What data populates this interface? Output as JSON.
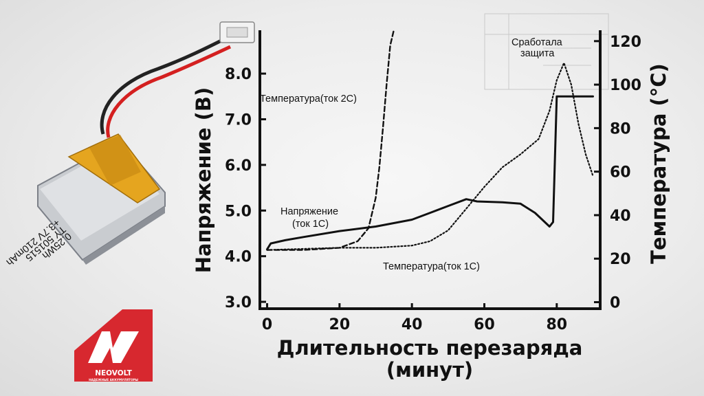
{
  "chart_data": {
    "type": "line",
    "xlabel_line1": "Длительность перезаряда",
    "xlabel_line2": "(минут)",
    "ylabel_left": "Напряжение (В)",
    "ylabel_right": "Температура (°C)",
    "x_ticks": [
      "0",
      "20",
      "40",
      "60",
      "80"
    ],
    "y_left_ticks": [
      "3.0",
      "4.0",
      "5.0",
      "6.0",
      "7.0",
      "8.0"
    ],
    "y_right_ticks": [
      "0",
      "20",
      "40",
      "60",
      "80",
      "100",
      "120"
    ],
    "xlim": [
      -2,
      92
    ],
    "y_left_lim": [
      2.85,
      8.95
    ],
    "y_right_lim": [
      -3,
      125
    ],
    "series": [
      {
        "name": "Напряжение (ток 1С)",
        "axis": "left",
        "style": "solid",
        "x": [
          0,
          1,
          5,
          10,
          20,
          30,
          40,
          45,
          50,
          55,
          58,
          65,
          70,
          74,
          76,
          78,
          79,
          80,
          81,
          85,
          90
        ],
        "y": [
          4.15,
          4.28,
          4.35,
          4.42,
          4.55,
          4.65,
          4.8,
          4.95,
          5.1,
          5.25,
          5.2,
          5.18,
          5.15,
          4.95,
          4.8,
          4.65,
          4.75,
          7.5,
          7.5,
          7.5,
          7.5
        ]
      },
      {
        "name": "Температура (ток 2С)",
        "axis": "right",
        "style": "dashed",
        "x": [
          0,
          10,
          20,
          25,
          28,
          30,
          31,
          32,
          33,
          34,
          35
        ],
        "y": [
          24,
          24,
          25,
          28,
          34,
          48,
          62,
          80,
          100,
          118,
          130
        ]
      },
      {
        "name": "Температура (ток 1С)",
        "axis": "right",
        "style": "dotted",
        "x": [
          0,
          20,
          30,
          40,
          45,
          50,
          55,
          60,
          65,
          70,
          75,
          78,
          80,
          82,
          84,
          86,
          88,
          90
        ],
        "y": [
          24,
          25,
          25,
          26,
          28,
          33,
          43,
          53,
          62,
          68,
          75,
          88,
          102,
          110,
          100,
          82,
          68,
          58
        ]
      }
    ],
    "annotations": [
      {
        "text": "Температура(ток 2С)"
      },
      {
        "text": "Напряжение"
      },
      {
        "text": "(ток 1С)"
      },
      {
        "text": "Температура(ток 1С)"
      },
      {
        "text": "Сработала"
      },
      {
        "text": "защита"
      }
    ]
  },
  "battery": {
    "label_lines": [
      "+3.7V 210mAh",
      "TY 501515",
      "0.25Wh"
    ]
  },
  "logo": {
    "brand": "NEOVOLT",
    "tagline": "НАДЕЖНЫЕ АККУМУЛЯТОРЫ",
    "color": "#d7282f"
  }
}
